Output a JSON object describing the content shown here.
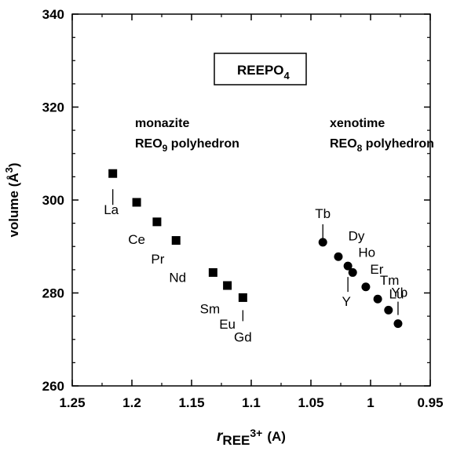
{
  "chart_data": {
    "type": "scatter",
    "xlabel_main": "r",
    "xlabel_sub": "REE",
    "xlabel_sup": "3+",
    "xlabel_unit": "(A)",
    "ylabel_main": "volume (",
    "ylabel_unit": "Å",
    "ylabel_sup": "3",
    "ylabel_end": ")",
    "xlim": [
      1.25,
      0.95
    ],
    "ylim": [
      260,
      340
    ],
    "x_reversed": true,
    "x_ticks": [
      1.25,
      1.2,
      1.15,
      1.1,
      1.05,
      1,
      0.95
    ],
    "x_tick_labels": [
      "1.25",
      "1.2",
      "1.15",
      "1.1",
      "1.05",
      "1",
      "0.95"
    ],
    "y_ticks": [
      260,
      280,
      300,
      320,
      340
    ],
    "y_tick_labels": [
      "260",
      "280",
      "300",
      "320",
      "340"
    ],
    "grid": false,
    "legend_box": {
      "main": "REEPO",
      "sub": "4"
    },
    "series": [
      {
        "marker": "square",
        "points": [
          {
            "label": "La",
            "x": 1.216,
            "y": 305.7
          },
          {
            "label": "Ce",
            "x": 1.196,
            "y": 299.5
          },
          {
            "label": "Pr",
            "x": 1.179,
            "y": 295.3
          },
          {
            "label": "Nd",
            "x": 1.163,
            "y": 291.3
          },
          {
            "label": "Sm",
            "x": 1.132,
            "y": 284.4
          },
          {
            "label": "Eu",
            "x": 1.12,
            "y": 281.6
          },
          {
            "label": "Gd",
            "x": 1.107,
            "y": 279.0
          }
        ]
      },
      {
        "marker": "circle",
        "points": [
          {
            "label": "Tb",
            "x": 1.04,
            "y": 290.9
          },
          {
            "label": "Dy",
            "x": 1.027,
            "y": 287.8
          },
          {
            "label": "Y",
            "x": 1.019,
            "y": 285.8
          },
          {
            "label": "Ho",
            "x": 1.015,
            "y": 284.4
          },
          {
            "label": "Er",
            "x": 1.004,
            "y": 281.3
          },
          {
            "label": "Tm",
            "x": 0.994,
            "y": 278.7
          },
          {
            "label": "Yb",
            "x": 0.985,
            "y": 276.3
          },
          {
            "label": "Lu",
            "x": 0.977,
            "y": 273.4
          }
        ]
      }
    ],
    "annotations": [
      {
        "lines": [
          {
            "text": "monazite"
          },
          {
            "text": "REO",
            "sub": "9",
            "rest": " polyhedron"
          }
        ]
      },
      {
        "lines": [
          {
            "text": "xenotime"
          },
          {
            "text": "REO",
            "sub": "8",
            "rest": " polyhedron"
          }
        ]
      }
    ]
  }
}
